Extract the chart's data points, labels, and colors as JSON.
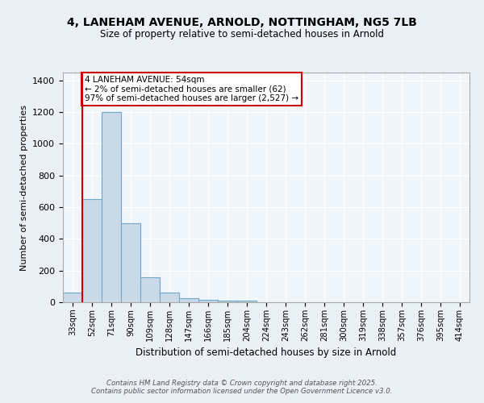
{
  "title_line1": "4, LANEHAM AVENUE, ARNOLD, NOTTINGHAM, NG5 7LB",
  "title_line2": "Size of property relative to semi-detached houses in Arnold",
  "xlabel": "Distribution of semi-detached houses by size in Arnold",
  "ylabel": "Number of semi-detached properties",
  "bin_labels": [
    "33sqm",
    "52sqm",
    "71sqm",
    "90sqm",
    "109sqm",
    "128sqm",
    "147sqm",
    "166sqm",
    "185sqm",
    "204sqm",
    "224sqm",
    "243sqm",
    "262sqm",
    "281sqm",
    "300sqm",
    "319sqm",
    "338sqm",
    "357sqm",
    "376sqm",
    "395sqm",
    "414sqm"
  ],
  "bar_heights": [
    60,
    650,
    1200,
    500,
    160,
    60,
    25,
    15,
    12,
    12,
    0,
    0,
    0,
    0,
    0,
    0,
    0,
    0,
    0,
    0,
    0
  ],
  "bar_color": "#c9d9e8",
  "bar_edge_color": "#6fa8c8",
  "property_line_color": "#cc0000",
  "annotation_text": "4 LANEHAM AVENUE: 54sqm\n← 2% of semi-detached houses are smaller (62)\n97% of semi-detached houses are larger (2,527) →",
  "annotation_box_color": "#cc0000",
  "ylim": [
    0,
    1450
  ],
  "yticks": [
    0,
    200,
    400,
    600,
    800,
    1000,
    1200,
    1400
  ],
  "bg_color": "#eaf0f6",
  "plot_bg_color": "#f0f5fa",
  "footer_text": "Contains HM Land Registry data © Crown copyright and database right 2025.\nContains public sector information licensed under the Open Government Licence v3.0.",
  "grid_color": "#ffffff"
}
